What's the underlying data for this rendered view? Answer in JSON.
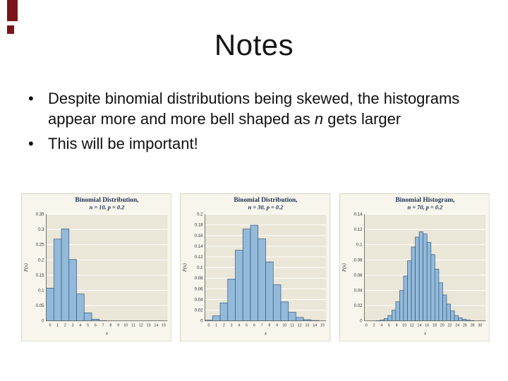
{
  "slide": {
    "title": "Notes",
    "bullet_marker": "•",
    "bullets": [
      {
        "pre": "Despite binomial distributions being skewed, the histograms appear more and more bell shaped as ",
        "em": "n",
        "post": " gets larger"
      },
      {
        "pre": "This will be important!",
        "em": "",
        "post": ""
      }
    ]
  },
  "decor": {
    "accent_color": "#7a1418"
  },
  "chart_colors": {
    "figure_bg": "#f7f5ec",
    "plot_bg": "#eae6d8",
    "grid": "#ffffff",
    "bar_fill": "#93bada",
    "bar_stroke": "#33567a",
    "axis": "#666660",
    "title_color": "#1c2f52",
    "tick_color": "#333333"
  },
  "chart_data": [
    {
      "type": "bar",
      "title": "Binomial Distribution,",
      "subtitle": "n = 10, p = 0.2",
      "xlabel": "x",
      "ylabel": "P(x)",
      "ylim": [
        0,
        0.35
      ],
      "ystep": 0.05,
      "xtick_every": 1,
      "categories": [
        0,
        1,
        2,
        3,
        4,
        5,
        6,
        7,
        8,
        9,
        10,
        11,
        12,
        13,
        14,
        15
      ],
      "values": [
        0.1074,
        0.2684,
        0.302,
        0.2013,
        0.0881,
        0.0264,
        0.0055,
        0.0008,
        0.0001,
        0,
        0,
        0,
        0,
        0,
        0,
        0
      ]
    },
    {
      "type": "bar",
      "title": "Binomial Distribution,",
      "subtitle": "n = 30, p = 0.2",
      "xlabel": "x",
      "ylabel": "P(x)",
      "ylim": [
        0,
        0.2
      ],
      "ystep": 0.02,
      "xtick_every": 1,
      "categories": [
        0,
        1,
        2,
        3,
        4,
        5,
        6,
        7,
        8,
        9,
        10,
        11,
        12,
        13,
        14,
        15
      ],
      "values": [
        0.0012,
        0.0093,
        0.0337,
        0.0785,
        0.1325,
        0.1723,
        0.1795,
        0.1538,
        0.1106,
        0.0676,
        0.0355,
        0.0161,
        0.0064,
        0.0022,
        0.0007,
        0.0002
      ]
    },
    {
      "type": "bar",
      "title": "Binomial Histogram,",
      "subtitle": "n = 70, p = 0.2",
      "xlabel": "x",
      "ylabel": "P(x)",
      "ylim": [
        0,
        0.14
      ],
      "ystep": 0.02,
      "xtick_every": 2,
      "categories": [
        0,
        2,
        4,
        6,
        8,
        10,
        12,
        14,
        16,
        18,
        20,
        22,
        24,
        26,
        28,
        30
      ],
      "x_full": [
        0,
        1,
        2,
        3,
        4,
        5,
        6,
        7,
        8,
        9,
        10,
        11,
        12,
        13,
        14,
        15,
        16,
        17,
        18,
        19,
        20,
        21,
        22,
        23,
        24,
        25,
        26,
        27,
        28,
        29,
        30
      ],
      "values": [
        0,
        0,
        0,
        0.0003,
        0.001,
        0.003,
        0.007,
        0.014,
        0.025,
        0.04,
        0.059,
        0.079,
        0.097,
        0.11,
        0.117,
        0.114,
        0.103,
        0.087,
        0.068,
        0.05,
        0.034,
        0.022,
        0.013,
        0.007,
        0.004,
        0.002,
        0.001,
        0.0004,
        0,
        0,
        0
      ]
    }
  ]
}
